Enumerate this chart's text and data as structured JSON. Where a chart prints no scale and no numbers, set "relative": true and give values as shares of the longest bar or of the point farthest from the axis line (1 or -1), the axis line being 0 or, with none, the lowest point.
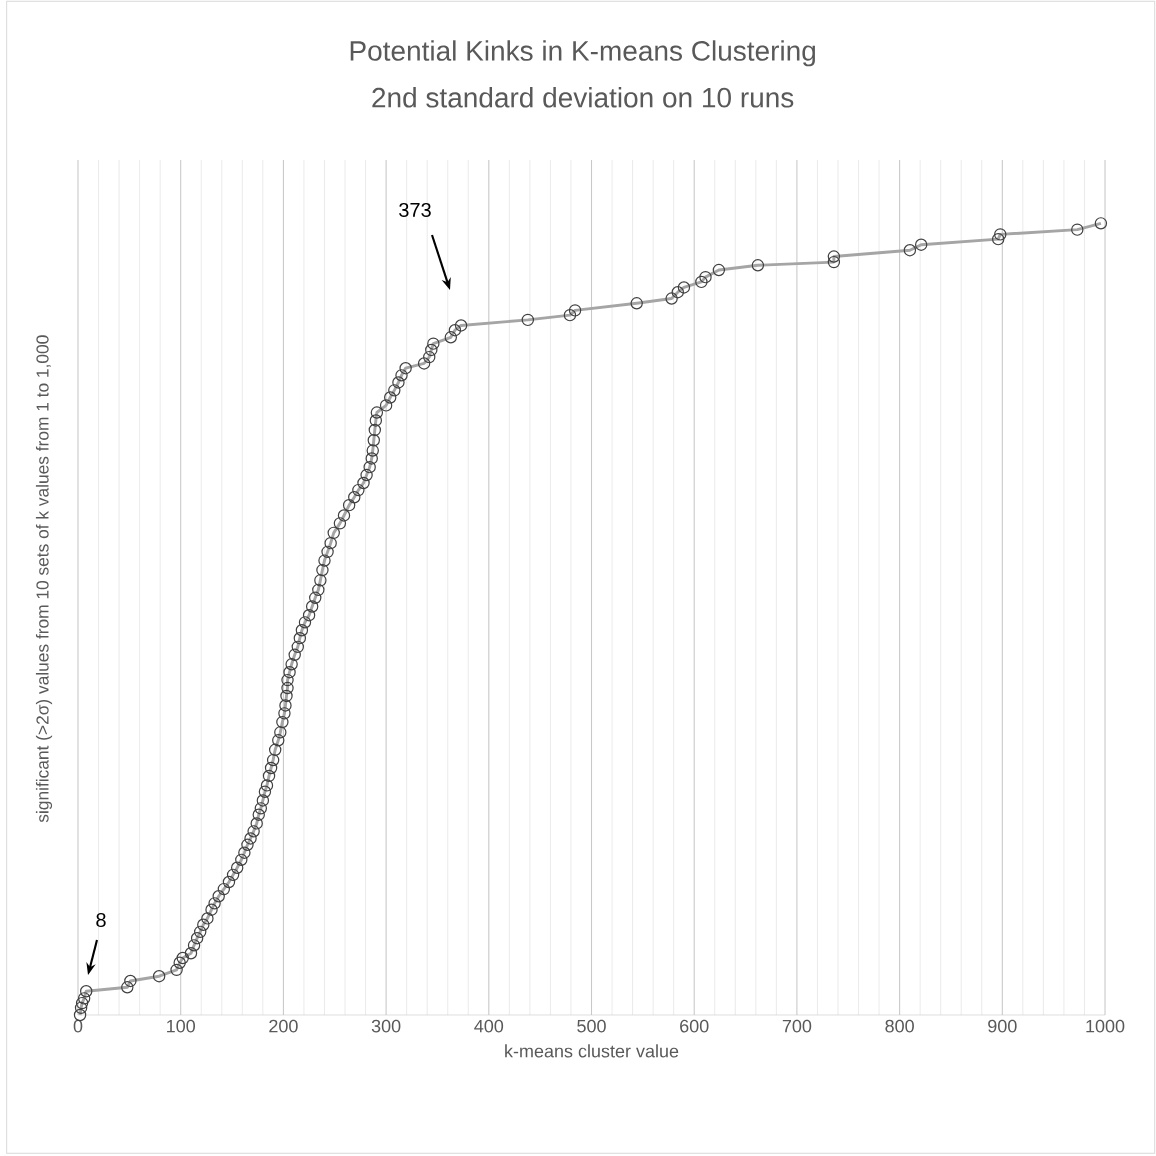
{
  "chart_data": {
    "type": "line",
    "title": "Potential Kinks in K-means Clustering",
    "subtitle": "2nd standard deviation on 10 runs",
    "xlabel": "k-means cluster value",
    "ylabel": "significant (>2σ) values from 10 sets of k values from 1 to 1,000",
    "relative": true,
    "xlim": [
      0,
      1000
    ],
    "xticks": [
      0,
      100,
      200,
      300,
      400,
      500,
      600,
      700,
      800,
      900,
      1000
    ],
    "grid": "x",
    "marker": "circle",
    "line_style": "solid",
    "annotations": [
      "8",
      "373"
    ],
    "series": [
      {
        "color": "#a5a5a5",
        "x": [
          2,
          3,
          4,
          6,
          8,
          48,
          51,
          79,
          96,
          99,
          102,
          110,
          113,
          116,
          119,
          122,
          126,
          130,
          133,
          137,
          142,
          147,
          151,
          155,
          159,
          162,
          165,
          168,
          171,
          174,
          176,
          178,
          180,
          182,
          184,
          186,
          188,
          190,
          192,
          195,
          197,
          199,
          201,
          202,
          203,
          204,
          204,
          206,
          208,
          211,
          214,
          216,
          218,
          221,
          225,
          228,
          231,
          234,
          236,
          238,
          240,
          243,
          246,
          249,
          255,
          259,
          264,
          269,
          273,
          278,
          281,
          284,
          286,
          287,
          288,
          289,
          290,
          291,
          300,
          304,
          308,
          312,
          315,
          319,
          337,
          342,
          344,
          346,
          363,
          367,
          373,
          438,
          479,
          484,
          544,
          578,
          584,
          590,
          607,
          611,
          624,
          662,
          736,
          736,
          810,
          821,
          896,
          898,
          973,
          996
        ],
        "values": [
          0,
          0.009,
          0.015,
          0.021,
          0.03,
          0.035,
          0.043,
          0.049,
          0.057,
          0.066,
          0.072,
          0.078,
          0.088,
          0.097,
          0.105,
          0.114,
          0.122,
          0.133,
          0.141,
          0.15,
          0.159,
          0.168,
          0.177,
          0.186,
          0.196,
          0.205,
          0.215,
          0.223,
          0.232,
          0.242,
          0.253,
          0.261,
          0.271,
          0.282,
          0.29,
          0.302,
          0.312,
          0.322,
          0.335,
          0.347,
          0.357,
          0.37,
          0.381,
          0.391,
          0.403,
          0.413,
          0.423,
          0.433,
          0.443,
          0.455,
          0.465,
          0.476,
          0.486,
          0.496,
          0.505,
          0.516,
          0.527,
          0.537,
          0.549,
          0.562,
          0.574,
          0.585,
          0.596,
          0.609,
          0.621,
          0.631,
          0.644,
          0.654,
          0.663,
          0.672,
          0.682,
          0.692,
          0.703,
          0.713,
          0.726,
          0.739,
          0.751,
          0.761,
          0.77,
          0.78,
          0.789,
          0.799,
          0.808,
          0.817,
          0.823,
          0.831,
          0.84,
          0.848,
          0.856,
          0.865,
          0.871,
          0.878,
          0.884,
          0.89,
          0.899,
          0.905,
          0.913,
          0.919,
          0.926,
          0.932,
          0.941,
          0.947,
          0.951,
          0.958,
          0.966,
          0.973,
          0.98,
          0.986,
          0.992,
          1
        ]
      }
    ]
  }
}
